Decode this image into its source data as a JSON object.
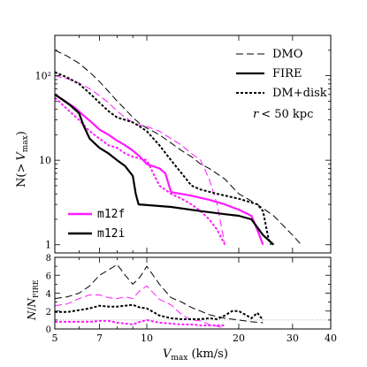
{
  "chart_data": [
    {
      "type": "line",
      "panel": "top",
      "xscale": "log",
      "yscale": "log",
      "xlim": [
        5,
        40
      ],
      "ylim": [
        0.8,
        300
      ],
      "xticks": [
        5,
        7,
        10,
        20,
        30,
        40
      ],
      "yticks": [
        1,
        10,
        100
      ],
      "yticklabels": [
        "1",
        "10",
        "10²"
      ],
      "ylabel": "N(> V_max)",
      "ylabel_main": "N(>",
      "ylabel_v": "V",
      "ylabel_sub": "max",
      "ylabel_close": ")",
      "annotation_r": "r",
      "annotation_rest": "< 50 kpc",
      "style_legend": [
        {
          "label": "DMO",
          "style": "long-dash"
        },
        {
          "label": "FIRE",
          "style": "solid"
        },
        {
          "label": "DM+disk",
          "style": "dotted"
        }
      ],
      "host_legend": [
        {
          "label": "m12f",
          "color": "#ff1aff"
        },
        {
          "label": "m12i",
          "color": "#000000"
        }
      ],
      "series": [
        {
          "name": "m12f",
          "run": "DMO",
          "color": "#ff1aff",
          "style": "long-dash",
          "points": [
            [
              5,
              100
            ],
            [
              5.5,
              92
            ],
            [
              6,
              82
            ],
            [
              6.5,
              70
            ],
            [
              7,
              58
            ],
            [
              7.5,
              48
            ],
            [
              8,
              38
            ],
            [
              8.5,
              32
            ],
            [
              9,
              28
            ],
            [
              9.5,
              26
            ],
            [
              10,
              25
            ],
            [
              11,
              22
            ],
            [
              12,
              18
            ],
            [
              13,
              15
            ],
            [
              14,
              12
            ],
            [
              15,
              10
            ],
            [
              16,
              6
            ],
            [
              17,
              3
            ],
            [
              18,
              1
            ]
          ]
        },
        {
          "name": "m12f",
          "run": "FIRE",
          "color": "#ff1aff",
          "style": "solid",
          "points": [
            [
              5,
              60
            ],
            [
              5.4,
              50
            ],
            [
              5.8,
              42
            ],
            [
              6.2,
              34
            ],
            [
              6.6,
              28
            ],
            [
              7,
              23
            ],
            [
              7.5,
              20
            ],
            [
              8,
              17
            ],
            [
              8.5,
              15
            ],
            [
              9,
              13
            ],
            [
              9.5,
              11
            ],
            [
              10,
              9
            ],
            [
              11,
              8
            ],
            [
              11.5,
              7
            ],
            [
              12,
              4.2
            ],
            [
              14,
              3.8
            ],
            [
              16,
              3.4
            ],
            [
              18,
              3
            ],
            [
              20,
              2.6
            ],
            [
              22,
              2.2
            ],
            [
              23,
              1.5
            ],
            [
              24,
              1
            ]
          ]
        },
        {
          "name": "m12f",
          "run": "DM+disk",
          "color": "#ff1aff",
          "style": "dotted",
          "points": [
            [
              5,
              55
            ],
            [
              5.5,
              40
            ],
            [
              6,
              30
            ],
            [
              6.5,
              22
            ],
            [
              7,
              18
            ],
            [
              7.5,
              15
            ],
            [
              8,
              14
            ],
            [
              8.5,
              12
            ],
            [
              9,
              11
            ],
            [
              9.5,
              10.5
            ],
            [
              10,
              10
            ],
            [
              10.5,
              7
            ],
            [
              11,
              5
            ],
            [
              12,
              4
            ],
            [
              13,
              3.5
            ],
            [
              14,
              3
            ],
            [
              15,
              2.5
            ],
            [
              16,
              2
            ],
            [
              17,
              1.5
            ],
            [
              18,
              1
            ]
          ]
        },
        {
          "name": "m12i",
          "run": "DMO",
          "color": "#000000",
          "style": "long-dash",
          "points": [
            [
              5,
              200
            ],
            [
              5.5,
              170
            ],
            [
              6,
              140
            ],
            [
              6.5,
              110
            ],
            [
              7,
              85
            ],
            [
              7.5,
              65
            ],
            [
              8,
              50
            ],
            [
              8.5,
              40
            ],
            [
              9,
              32
            ],
            [
              9.5,
              27
            ],
            [
              10,
              24
            ],
            [
              11,
              20
            ],
            [
              12,
              16
            ],
            [
              13,
              13
            ],
            [
              14,
              11
            ],
            [
              15,
              9
            ],
            [
              16,
              8
            ],
            [
              18,
              6
            ],
            [
              20,
              4
            ],
            [
              23,
              3
            ],
            [
              26,
              2.2
            ],
            [
              30,
              1.3
            ],
            [
              32,
              1
            ]
          ]
        },
        {
          "name": "m12i",
          "run": "FIRE",
          "color": "#000000",
          "style": "solid",
          "points": [
            [
              5,
              60
            ],
            [
              5.3,
              52
            ],
            [
              5.6,
              45
            ],
            [
              6,
              36
            ],
            [
              6.2,
              26
            ],
            [
              6.5,
              18
            ],
            [
              7,
              14
            ],
            [
              7.5,
              12
            ],
            [
              8,
              10
            ],
            [
              8.5,
              8.5
            ],
            [
              9,
              6.5
            ],
            [
              9.2,
              4
            ],
            [
              9.4,
              3
            ],
            [
              12,
              2.8
            ],
            [
              15,
              2.5
            ],
            [
              18,
              2.3
            ],
            [
              20,
              2.2
            ],
            [
              22,
              2
            ],
            [
              24,
              1.3
            ],
            [
              26,
              1
            ]
          ]
        },
        {
          "name": "m12i",
          "run": "DM+disk",
          "color": "#000000",
          "style": "dotted",
          "points": [
            [
              5,
              110
            ],
            [
              5.5,
              95
            ],
            [
              6,
              80
            ],
            [
              6.5,
              62
            ],
            [
              7,
              48
            ],
            [
              7.5,
              38
            ],
            [
              8,
              32
            ],
            [
              8.5,
              30
            ],
            [
              9,
              28
            ],
            [
              9.5,
              25
            ],
            [
              10,
              22
            ],
            [
              11,
              15
            ],
            [
              12,
              10
            ],
            [
              13,
              7
            ],
            [
              14,
              5
            ],
            [
              15,
              4.5
            ],
            [
              17,
              4
            ],
            [
              20,
              3.5
            ],
            [
              23,
              3
            ],
            [
              24,
              2.5
            ],
            [
              25,
              1.2
            ],
            [
              25.5,
              1
            ]
          ]
        }
      ]
    },
    {
      "type": "line",
      "panel": "bottom",
      "xscale": "log",
      "xlim": [
        5,
        40
      ],
      "ylim": [
        0,
        8
      ],
      "xticks": [
        5,
        7,
        10,
        20,
        30,
        40
      ],
      "xticklabels": [
        "5",
        "7",
        "10",
        "20",
        "30",
        "40"
      ],
      "yticks": [
        0,
        2,
        4,
        6,
        8
      ],
      "ylabel": "N/N_FIRE",
      "xlabel": "V_max (km/s)",
      "xlabel_v": "V",
      "xlabel_sub": "max",
      "xlabel_rest": " (km/s)",
      "ylabel_n": "N",
      "ylabel_slash": "/",
      "ylabel_n2": "N",
      "ylabel_sub": "FIRE",
      "reference_line": 1,
      "series": [
        {
          "name": "m12f",
          "run": "DMO",
          "color": "#ff1aff",
          "style": "long-dash",
          "points": [
            [
              5,
              2.6
            ],
            [
              5.5,
              2.8
            ],
            [
              6,
              3.4
            ],
            [
              6.5,
              3.8
            ],
            [
              7,
              3.8
            ],
            [
              7.5,
              3.5
            ],
            [
              8,
              3.4
            ],
            [
              8.5,
              3.6
            ],
            [
              9,
              3.4
            ],
            [
              9.5,
              4.3
            ],
            [
              10,
              4.8
            ],
            [
              11,
              3.3
            ],
            [
              12,
              2.7
            ],
            [
              13,
              1.6
            ],
            [
              14,
              1.0
            ],
            [
              15,
              0.9
            ],
            [
              16,
              0.5
            ],
            [
              17,
              0.3
            ],
            [
              18,
              0.1
            ]
          ]
        },
        {
          "name": "m12f",
          "run": "DM+disk",
          "color": "#ff1aff",
          "style": "dotted",
          "points": [
            [
              5,
              0.8
            ],
            [
              5.5,
              0.8
            ],
            [
              6,
              0.8
            ],
            [
              6.5,
              0.8
            ],
            [
              7,
              0.9
            ],
            [
              7.5,
              0.9
            ],
            [
              8,
              0.7
            ],
            [
              8.5,
              0.6
            ],
            [
              9,
              0.5
            ],
            [
              9.5,
              0.8
            ],
            [
              10,
              1.0
            ],
            [
              11,
              0.7
            ],
            [
              12,
              0.6
            ],
            [
              13,
              0.5
            ],
            [
              14,
              0.5
            ],
            [
              15,
              0.4
            ],
            [
              16,
              0.4
            ],
            [
              17,
              0.4
            ],
            [
              18,
              0.4
            ]
          ]
        },
        {
          "name": "m12i",
          "run": "DMO",
          "color": "#000000",
          "style": "long-dash",
          "points": [
            [
              5,
              3.4
            ],
            [
              5.5,
              3.6
            ],
            [
              6,
              4.0
            ],
            [
              6.5,
              4.8
            ],
            [
              7,
              6.0
            ],
            [
              7.5,
              6.6
            ],
            [
              8,
              7.2
            ],
            [
              8.5,
              6.0
            ],
            [
              9,
              5.0
            ],
            [
              9.5,
              5.8
            ],
            [
              10,
              7.0
            ],
            [
              11,
              5.0
            ],
            [
              12,
              3.5
            ],
            [
              13,
              3.0
            ],
            [
              14,
              2.4
            ],
            [
              15,
              2.0
            ],
            [
              16,
              1.6
            ],
            [
              18,
              1.2
            ],
            [
              20,
              1.0
            ],
            [
              22,
              0.8
            ],
            [
              24,
              0.7
            ]
          ]
        },
        {
          "name": "m12i",
          "run": "DM+disk",
          "color": "#000000",
          "style": "dotted",
          "points": [
            [
              5,
              1.9
            ],
            [
              5.5,
              1.9
            ],
            [
              6,
              2.1
            ],
            [
              6.5,
              2.3
            ],
            [
              7,
              2.6
            ],
            [
              7.5,
              2.5
            ],
            [
              8,
              2.5
            ],
            [
              8.5,
              2.6
            ],
            [
              9,
              2.7
            ],
            [
              9.5,
              2.4
            ],
            [
              10,
              2.3
            ],
            [
              11,
              1.5
            ],
            [
              12,
              1.2
            ],
            [
              13,
              1.1
            ],
            [
              14,
              1.1
            ],
            [
              15,
              1.1
            ],
            [
              16,
              1.2
            ],
            [
              17,
              1.1
            ],
            [
              18,
              1.5
            ],
            [
              19,
              2.0
            ],
            [
              20,
              2.0
            ],
            [
              21,
              1.6
            ],
            [
              22,
              1.2
            ],
            [
              23,
              1.8
            ],
            [
              24,
              1.0
            ]
          ]
        }
      ]
    }
  ]
}
